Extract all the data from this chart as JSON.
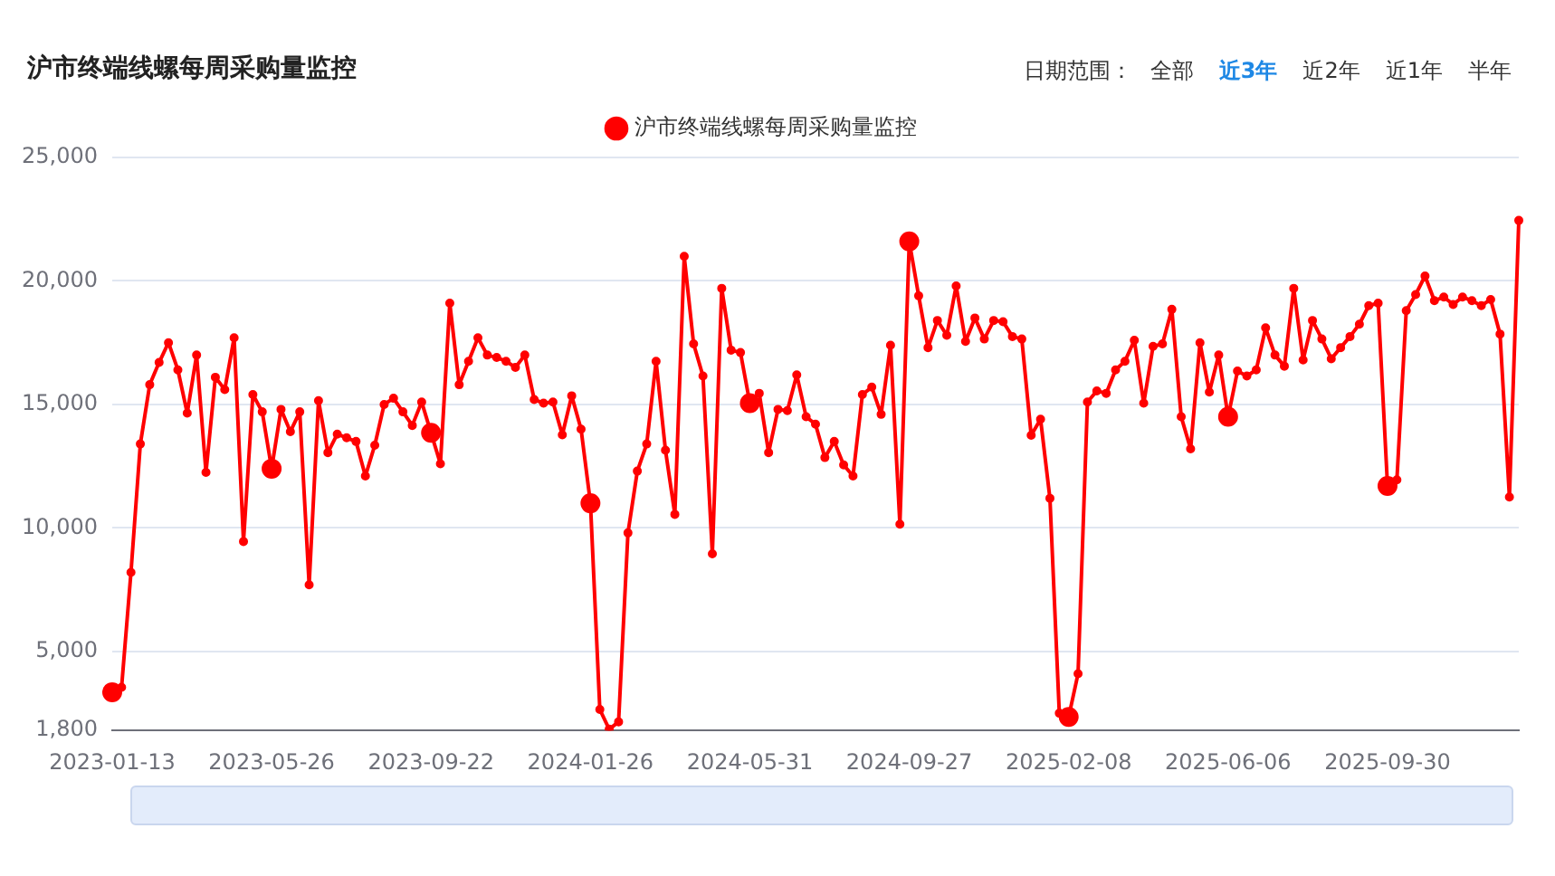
{
  "chart_data": {
    "type": "line",
    "title": "沪市终端线螺每周采购量监控",
    "annotations": [
      "日期范围：",
      "全部",
      "近3年",
      "近2年",
      "近1年",
      "半年"
    ],
    "categories": [
      "2023-01-13",
      null,
      null,
      null,
      null,
      null,
      null,
      null,
      null,
      null,
      null,
      null,
      null,
      null,
      null,
      null,
      null,
      "2023-05-26",
      null,
      null,
      null,
      null,
      null,
      null,
      null,
      null,
      null,
      null,
      null,
      null,
      null,
      null,
      null,
      null,
      "2023-09-22",
      null,
      null,
      null,
      null,
      null,
      null,
      null,
      null,
      null,
      null,
      null,
      null,
      null,
      null,
      null,
      null,
      "2024-01-26",
      null,
      null,
      null,
      null,
      null,
      null,
      null,
      null,
      null,
      null,
      null,
      null,
      null,
      null,
      null,
      null,
      "2024-05-31",
      null,
      null,
      null,
      null,
      null,
      null,
      null,
      null,
      null,
      null,
      null,
      null,
      null,
      null,
      null,
      null,
      "2024-09-27",
      null,
      null,
      null,
      null,
      null,
      null,
      null,
      null,
      null,
      null,
      null,
      null,
      null,
      null,
      null,
      null,
      "2025-02-08",
      null,
      null,
      null,
      null,
      null,
      null,
      null,
      null,
      null,
      null,
      null,
      null,
      null,
      null,
      null,
      null,
      "2025-06-06",
      null,
      null,
      null,
      null,
      null,
      null,
      null,
      null,
      null,
      null,
      null,
      null,
      null,
      null,
      null,
      null,
      "2025-09-30",
      null,
      null,
      null,
      null,
      null,
      null,
      null,
      null,
      null,
      null,
      null,
      null,
      null,
      null
    ],
    "series": [
      {
        "name": "沪市终端线螺每周采购量监控",
        "color": "#ff0000",
        "values": [
          3350,
          3550,
          8200,
          13400,
          15800,
          16700,
          17500,
          16400,
          14650,
          17000,
          12250,
          16100,
          15600,
          17700,
          9450,
          15400,
          14700,
          12400,
          14800,
          13900,
          14700,
          7700,
          15150,
          13050,
          13800,
          13650,
          13500,
          12100,
          13350,
          15000,
          15250,
          14700,
          14150,
          15100,
          13850,
          12600,
          19100,
          15800,
          16750,
          17700,
          17000,
          16900,
          16750,
          16500,
          17000,
          15200,
          15050,
          15100,
          13770,
          15350,
          14000,
          11000,
          2650,
          1850,
          2150,
          9800,
          12300,
          13400,
          16750,
          13150,
          10550,
          21000,
          17450,
          16150,
          8950,
          19700,
          17200,
          17100,
          15050,
          15450,
          13050,
          14800,
          14750,
          16200,
          14500,
          14200,
          12850,
          13500,
          12550,
          12100,
          15400,
          15700,
          14600,
          17400,
          10150,
          21600,
          19400,
          17300,
          18400,
          17800,
          19800,
          17550,
          18500,
          17650,
          18400,
          18350,
          17750,
          17650,
          13750,
          14400,
          11200,
          2500,
          2350,
          4100,
          15100,
          15550,
          15450,
          16400,
          16750,
          17600,
          15050,
          17350,
          17450,
          18850,
          14500,
          13200,
          17500,
          15500,
          17000,
          14500,
          16350,
          16150,
          16400,
          18100,
          17000,
          16550,
          19700,
          16800,
          18400,
          17650,
          16850,
          17300,
          17750,
          18250,
          19000,
          19100,
          11700,
          11950,
          18800,
          19450,
          20200,
          19200,
          19350,
          19050,
          19350,
          19200,
          19000,
          19250,
          17850,
          11250,
          22450
        ]
      }
    ],
    "ylim": [
      1800,
      25000
    ],
    "yticks": [
      {
        "value": 1800,
        "label": "1,800"
      },
      {
        "value": 5000,
        "label": "5,000"
      },
      {
        "value": 10000,
        "label": "10,000"
      },
      {
        "value": 15000,
        "label": "15,000"
      },
      {
        "value": 20000,
        "label": "20,000"
      },
      {
        "value": 25000,
        "label": "25,000"
      }
    ],
    "grid": "y",
    "legend": "top",
    "marker": "circle",
    "line_style": "solid"
  }
}
